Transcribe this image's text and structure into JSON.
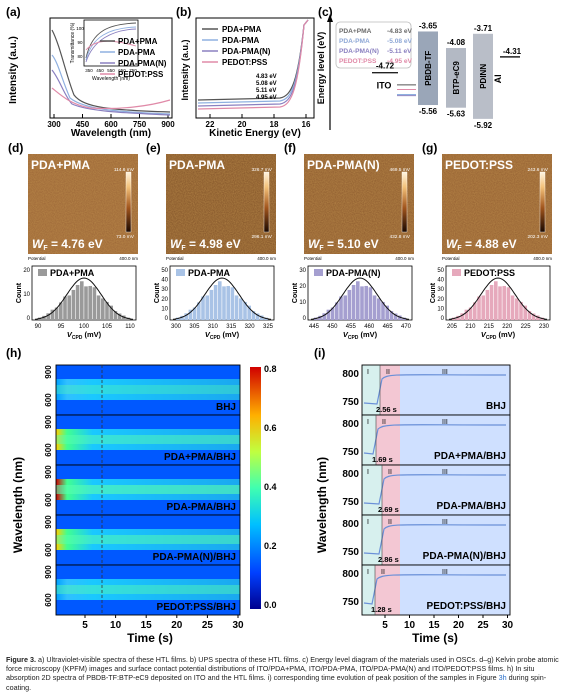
{
  "panel_a": {
    "label": "(a)",
    "ylabel": "Intensity (a.u.)",
    "xlabel": "Wavelength (nm)",
    "xticks": [
      "300",
      "450",
      "600",
      "750",
      "900"
    ],
    "legend": [
      "PDA+PMA",
      "PDA-PMA",
      "PDA-PMA(N)",
      "PEDOT:PSS"
    ],
    "inset_ylabel": "Transmittance (%)",
    "inset_xlabel": "Wavelength (nm)",
    "inset_yticks": [
      "100",
      "90",
      "80"
    ],
    "inset_xticks": [
      "350",
      "450",
      "550",
      "650",
      "750"
    ]
  },
  "panel_b": {
    "label": "(b)",
    "ylabel": "Intensity (a.u.)",
    "xlabel": "Kinetic Energy (eV)",
    "xticks": [
      "22",
      "20",
      "18",
      "16"
    ],
    "legend": [
      "PDA+PMA",
      "PDA-PMA",
      "PDA-PMA(N)",
      "PEDOT:PSS"
    ],
    "values": [
      "4.83 eV",
      "5.08 eV",
      "5.11 eV",
      "4.95 eV"
    ]
  },
  "panel_c": {
    "label": "(c)",
    "ylabel": "Energy level (eV)",
    "legend": [
      {
        "name": "PDA+PMA",
        "value": "-4.83 eV",
        "color": "#6a6a6a"
      },
      {
        "name": "PDA-PMA",
        "value": "-5.08 eV",
        "color": "#8fa8d6"
      },
      {
        "name": "PDA-PMA(N)",
        "value": "-5.11 eV",
        "color": "#8a80c0"
      },
      {
        "name": "PEDOT:PSS",
        "value": "-4.95 eV",
        "color": "#e08aa8"
      }
    ],
    "materials": [
      {
        "name": "ITO",
        "top": "-4.72"
      },
      {
        "name": "PBDB-TF",
        "top": "-3.65",
        "bottom": "-5.56"
      },
      {
        "name": "BTP-eC9",
        "top": "-4.08",
        "bottom": "-5.63"
      },
      {
        "name": "PDINN",
        "top": "-3.71",
        "bottom": "-5.92"
      },
      {
        "name": "Al",
        "top": "-4.31"
      }
    ]
  },
  "kpfm": [
    {
      "label": "(d)",
      "name": "PDA+PMA",
      "wf": "= 4.76 eV",
      "scale_top": "114.6 mV",
      "scale_bottom": "73.0 mV",
      "hist_title": "PDA+PMA",
      "xticks": [
        "90",
        "95",
        "100",
        "105",
        "110"
      ],
      "yticks": [
        "20",
        "10",
        "0"
      ],
      "color": "#9a9a9a"
    },
    {
      "label": "(e)",
      "name": "PDA-PMA",
      "wf": "= 4.98 eV",
      "scale_top": "326.7 mV",
      "scale_bottom": "296.1 mV",
      "hist_title": "PDA-PMA",
      "xticks": [
        "300",
        "305",
        "310",
        "315",
        "320",
        "325"
      ],
      "yticks": [
        "50",
        "40",
        "30",
        "20",
        "10",
        "0"
      ],
      "color": "#a9c3e6"
    },
    {
      "label": "(f)",
      "name": "PDA-PMA(N)",
      "wf": "= 5.10 eV",
      "scale_top": "469.5 mV",
      "scale_bottom": "432.8 mV",
      "hist_title": "PDA-PMA(N)",
      "xticks": [
        "445",
        "450",
        "455",
        "460",
        "465",
        "470"
      ],
      "yticks": [
        "30",
        "20",
        "10",
        "0"
      ],
      "color": "#a59fd0"
    },
    {
      "label": "(g)",
      "name": "PEDOT:PSS",
      "wf": "= 4.88 eV",
      "scale_top": "243.6 mV",
      "scale_bottom": "202.3 mV",
      "hist_title": "PEDOT:PSS",
      "xticks": [
        "205",
        "210",
        "215",
        "220",
        "225",
        "230"
      ],
      "yticks": [
        "50",
        "40",
        "30",
        "20",
        "10",
        "0"
      ],
      "color": "#e6a9bc"
    }
  ],
  "kpfm_common": {
    "wf_prefix": "W",
    "wf_sub": "F",
    "potential": "Potential",
    "scalebar": "400.0 nm",
    "hist_ylabel": "Count",
    "hist_xlabel": "V",
    "hist_xsub": "CPD",
    "hist_xunit": " (mV)"
  },
  "panel_h": {
    "label": "(h)",
    "ylabel": "Wavelength (nm)",
    "xlabel": "Time (s)",
    "xticks": [
      "5",
      "10",
      "15",
      "20",
      "25",
      "30"
    ],
    "row_yticks": [
      "900",
      "600"
    ],
    "rows": [
      "BHJ",
      "PDA+PMA/BHJ",
      "PDA-PMA/BHJ",
      "PDA-PMA(N)/BHJ",
      "PEDOT:PSS/BHJ"
    ],
    "colorbar": [
      "0.8",
      "0.6",
      "0.4",
      "0.2",
      "0.0"
    ]
  },
  "panel_i": {
    "label": "(i)",
    "ylabel": "Wavelength (nm)",
    "xlabel": "Time (s)",
    "xticks": [
      "5",
      "10",
      "15",
      "20",
      "25",
      "30"
    ],
    "row_yticks": [
      "800",
      "750"
    ],
    "stages": [
      "I",
      "II",
      "III"
    ],
    "rows": [
      {
        "name": "BHJ",
        "time": "2.56 s"
      },
      {
        "name": "PDA+PMA/BHJ",
        "time": "1.69 s"
      },
      {
        "name": "PDA-PMA/BHJ",
        "time": "2.69 s"
      },
      {
        "name": "PDA-PMA(N)/BHJ",
        "time": "2.86 s"
      },
      {
        "name": "PEDOT:PSS/BHJ",
        "time": "1.28 s"
      }
    ]
  },
  "caption": {
    "lead": "Figure 3.",
    "text1": " a) Ultraviolet-visible spectra of these HTL films. b) UPS spectra of these HTL films. c) Energy level diagram of the materials used in OSCs. d–g) Kelvin probe atomic force microscopy (KPFM) images and surface contact potential distributions of ITO/PDA+PMA, ITO/PDA-PMA, ITO/PDA-PMA(N) and ITO/PEDOT:PSS films. h) In situ absorption 2D spectra of PBDB-TF:BTP-eC9 deposited on ITO and the HTL films. i) corresponding time evolution of peak position of the samples in Figure ",
    "link": "3h",
    "text2": " during spin-coating."
  }
}
